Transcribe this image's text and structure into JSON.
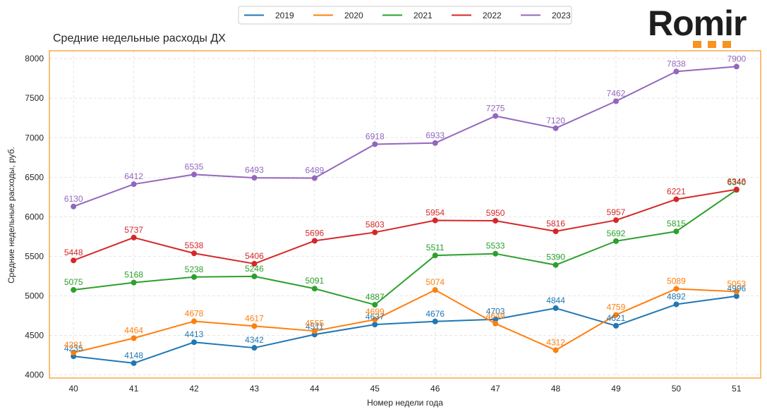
{
  "logo": {
    "text": "Romir",
    "dot_color": "#f7931e"
  },
  "chart_data": {
    "type": "line",
    "title": "Средние недельные расходы ДХ",
    "xlabel": "Номер недели года",
    "ylabel": "Средние недельные расходы, руб.",
    "x": [
      40,
      41,
      42,
      43,
      44,
      45,
      46,
      47,
      48,
      49,
      50,
      51
    ],
    "xlim": [
      39.6,
      51.4
    ],
    "ylim": [
      3960,
      8100
    ],
    "yticks": [
      4000,
      4500,
      5000,
      5500,
      6000,
      6500,
      7000,
      7500,
      8000
    ],
    "grid": true,
    "legend_position": "top-center",
    "frame_color": "#f7931e",
    "series": [
      {
        "name": "2019",
        "color": "#1f77b4",
        "values": [
          4235,
          4148,
          4413,
          4342,
          4511,
          4637,
          4676,
          4703,
          4844,
          4621,
          4892,
          4996
        ]
      },
      {
        "name": "2020",
        "color": "#ff7f0e",
        "values": [
          4281,
          4464,
          4678,
          4617,
          4555,
          4699,
          5074,
          4649,
          4312,
          4759,
          5089,
          5053
        ]
      },
      {
        "name": "2021",
        "color": "#2ca02c",
        "values": [
          5075,
          5168,
          5238,
          5246,
          5091,
          4887,
          5511,
          5533,
          5390,
          5692,
          5815,
          6340
        ]
      },
      {
        "name": "2022",
        "color": "#d62728",
        "values": [
          5448,
          5737,
          5538,
          5406,
          5696,
          5803,
          5954,
          5950,
          5816,
          5957,
          6221,
          6346
        ]
      },
      {
        "name": "2023",
        "color": "#9467bd",
        "values": [
          6130,
          6412,
          6535,
          6493,
          6489,
          6918,
          6933,
          7275,
          7120,
          7462,
          7838,
          7900
        ]
      }
    ]
  }
}
